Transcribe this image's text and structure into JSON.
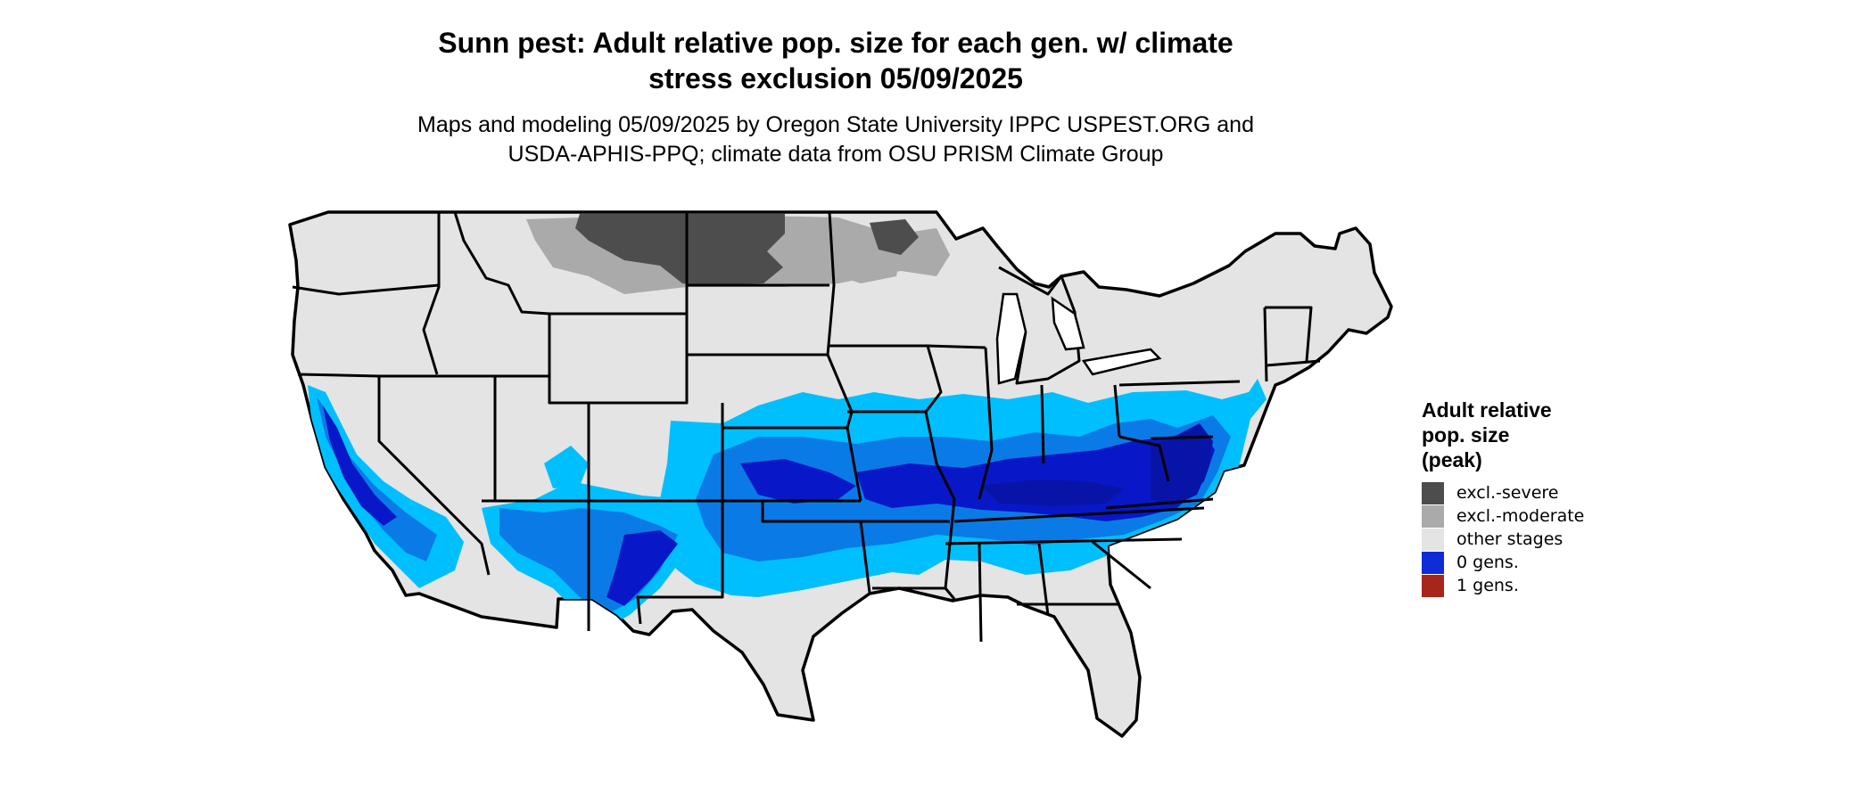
{
  "title_lines": [
    "Sunn pest: Adult relative pop. size for each gen. w/ climate",
    "stress exclusion 05/09/2025"
  ],
  "subtitle_lines": [
    "Maps and modeling 05/09/2025 by Oregon State University IPPC USPEST.ORG and",
    "USDA-APHIS-PPQ; climate data from OSU PRISM Climate Group"
  ],
  "legend": {
    "title_lines": [
      "Adult relative",
      "pop. size",
      "(peak)"
    ],
    "items": [
      {
        "label": "excl.-severe",
        "color": "#4d4d4d"
      },
      {
        "label": "excl.-moderate",
        "color": "#aaaaaa"
      },
      {
        "label": "other stages",
        "color": "#e4e4e4"
      },
      {
        "label": "0 gens.",
        "color": "#0f2cd6"
      },
      {
        "label": "1 gens.",
        "color": "#a8251b"
      }
    ]
  },
  "map_colors": {
    "land": "#e4e4e4",
    "border": "#000000",
    "light_blue": "#00bfff",
    "medium_blue": "#0a7be6",
    "dark_blue": "#0818c8",
    "navy": "#0814a8"
  }
}
